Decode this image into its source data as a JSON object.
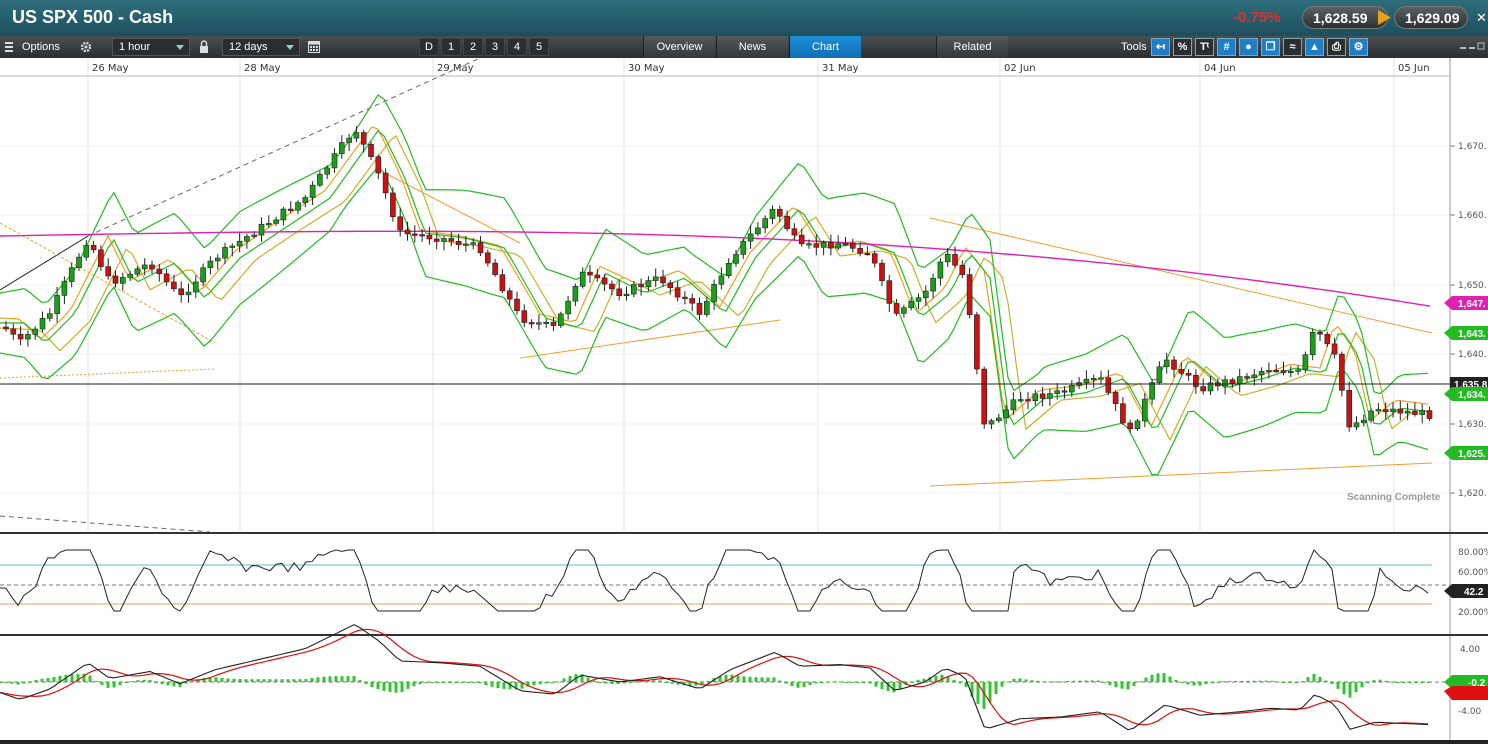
{
  "window": {
    "title": "US SPX 500 - Cash",
    "change": "-0.75%",
    "sell_price": "1,628.59",
    "buy_price": "1,629.09",
    "close_glyph": "✕"
  },
  "toolbar": {
    "options_label": "Options",
    "interval": "1 hour",
    "range": "12 days",
    "period_buttons": [
      "D",
      "1",
      "2",
      "3",
      "4",
      "5"
    ],
    "tabs": [
      "Overview",
      "News",
      "Chart",
      "Related"
    ],
    "active_tab": "Chart",
    "tools_label": "Tools",
    "tool_icons": [
      "back-arrow-icon",
      "percent-icon",
      "text-size-icon",
      "crosshair-icon",
      "cursor-icon",
      "duplicate-icon",
      "draw-icon",
      "chart-type-icon",
      "print-icon",
      "settings-icon"
    ],
    "icons": {
      "menu": "menu-icon",
      "settings": "gear-icon",
      "lock": "lock-icon",
      "calendar": "calendar-icon"
    }
  },
  "main_chart": {
    "date_labels": [
      "26 May",
      "28 May",
      "29 May",
      "30 May",
      "31 May",
      "02 Jun",
      "04 Jun",
      "05 Jun"
    ],
    "price_ticks": [
      "1,670.",
      "1,660.",
      "1,650.",
      "1,640.",
      "1,630.",
      "1,620."
    ],
    "current_price_tag": "1,635.8",
    "tags": [
      {
        "label": "1,647.",
        "color": "#e020b0"
      },
      {
        "label": "1,643.",
        "color": "#22bb22"
      },
      {
        "label": "1,634.",
        "color": "#22bb22"
      },
      {
        "label": "1,625.",
        "color": "#22bb22"
      }
    ],
    "status_text": "Scanning Complete"
  },
  "rsi_panel": {
    "ticks": [
      "80.00%",
      "60.00%",
      "20.00%"
    ],
    "value_tag": "42.2"
  },
  "macd_panel": {
    "ticks": [
      "4.00",
      "-4.00"
    ],
    "value_tag": "-0.2"
  },
  "colors": {
    "bull_candle": "#19a019",
    "bear_candle": "#cc1111",
    "bollinger": "#22bb22",
    "moving_avg_long": "#e020b0",
    "moving_avg_fast": "#f0a020",
    "moving_avg_slow": "#c8b030",
    "trendline": "#f0a030"
  }
}
